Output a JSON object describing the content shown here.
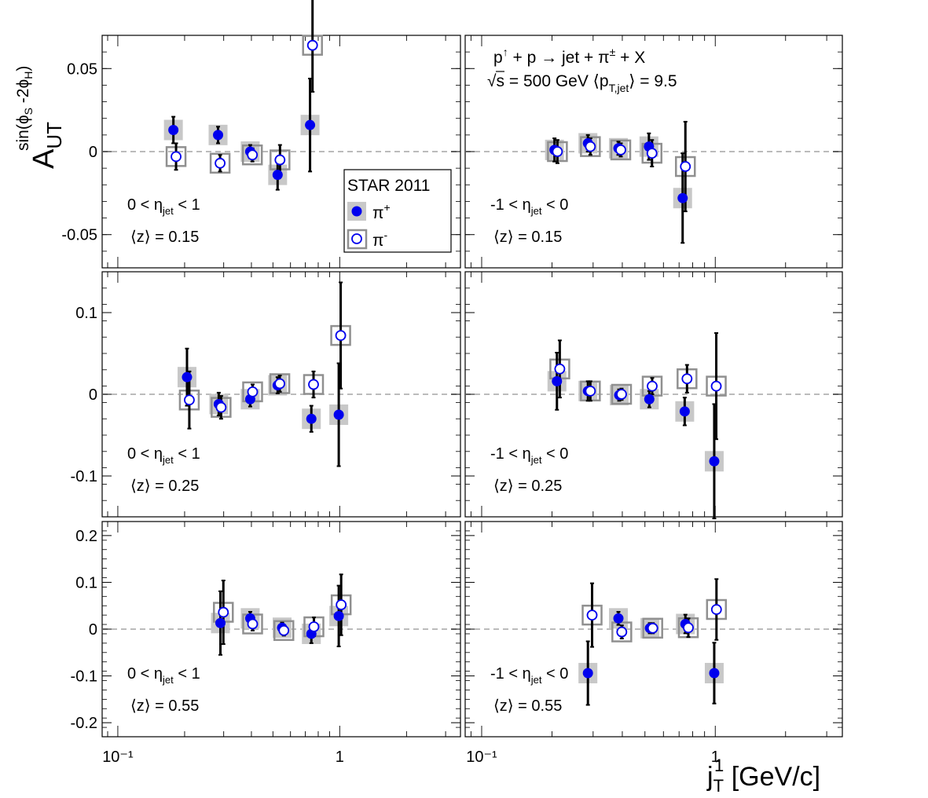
{
  "figure": {
    "ylabel_main": "A",
    "ylabel_sub": "UT",
    "ylabel_sup": "sin(ϕ",
    "ylabel_sup_sub1": "S",
    "ylabel_sup_mid": " -2ϕ",
    "ylabel_sup_sub2": "H",
    "ylabel_sup_end": ")",
    "xlabel_main": "j",
    "xlabel_sub": "T",
    "xlabel_sup": "1",
    "xlabel_unit": " [GeV/c]",
    "reaction_line1_a": "p",
    "reaction_line1_b": " + p → jet + π",
    "reaction_line1_sup": "±",
    "reaction_line1_c": " + X",
    "reaction_line2_a": "√s = 500 GeV   ⟨p",
    "reaction_line2_sub": "T,jet",
    "reaction_line2_b": "⟩ = 9.5",
    "legend_title": "STAR 2011",
    "legend_piplus": "π",
    "legend_piplus_sup": "+",
    "legend_piminus": "π",
    "legend_piminus_sup": "-",
    "colors": {
      "pi_plus": "#0000ee",
      "pi_minus_edge": "#0000ee",
      "sys_plus": "#c8c8c8",
      "sys_minus": "#909090",
      "zero_line": "#bbbbbb"
    }
  },
  "chart_data": [
    {
      "type": "scatter",
      "row": 0,
      "col": 0,
      "xscale": "log",
      "xlim": [
        0.085,
        3.5
      ],
      "ylim": [
        -0.07,
        0.07
      ],
      "yticks": [
        -0.05,
        0,
        0.05
      ],
      "ytick_labels": [
        "-0.05",
        "0",
        "0.05"
      ],
      "xtick_labels_shown": false,
      "label_eta_a": "0 < η",
      "label_eta_sub": "jet",
      "label_eta_b": " < 1",
      "label_z": "⟨z⟩ = 0.15",
      "series": [
        {
          "name": "π+",
          "points": [
            {
              "x": 0.178,
              "y": 0.013,
              "err": 0.008
            },
            {
              "x": 0.283,
              "y": 0.01,
              "err": 0.005
            },
            {
              "x": 0.395,
              "y": 0.0,
              "err": 0.004
            },
            {
              "x": 0.525,
              "y": -0.014,
              "err": 0.009
            },
            {
              "x": 0.735,
              "y": 0.016,
              "err": 0.028
            }
          ]
        },
        {
          "name": "π-",
          "points": [
            {
              "x": 0.183,
              "y": -0.003,
              "err": 0.008
            },
            {
              "x": 0.289,
              "y": -0.007,
              "err": 0.005
            },
            {
              "x": 0.404,
              "y": -0.002,
              "err": 0.004
            },
            {
              "x": 0.538,
              "y": -0.005,
              "err": 0.009
            },
            {
              "x": 0.754,
              "y": 0.064,
              "err": 0.028
            }
          ]
        }
      ]
    },
    {
      "type": "scatter",
      "row": 0,
      "col": 1,
      "xscale": "log",
      "xlim": [
        0.085,
        3.5
      ],
      "ylim": [
        -0.07,
        0.07
      ],
      "yticks": [
        -0.05,
        0,
        0.05
      ],
      "ytick_labels": [
        "",
        "",
        ""
      ],
      "xtick_labels_shown": false,
      "label_eta_a": "-1 < η",
      "label_eta_sub": "jet",
      "label_eta_b": " < 0",
      "label_z": "⟨z⟩ = 0.15",
      "series": [
        {
          "name": "π+",
          "points": [
            {
              "x": 0.205,
              "y": 0.001,
              "err": 0.007
            },
            {
              "x": 0.285,
              "y": 0.005,
              "err": 0.005
            },
            {
              "x": 0.385,
              "y": 0.002,
              "err": 0.004
            },
            {
              "x": 0.52,
              "y": 0.003,
              "err": 0.008
            },
            {
              "x": 0.725,
              "y": -0.028,
              "err": 0.027
            }
          ]
        },
        {
          "name": "π-",
          "points": [
            {
              "x": 0.211,
              "y": 0.0,
              "err": 0.007
            },
            {
              "x": 0.292,
              "y": 0.003,
              "err": 0.005
            },
            {
              "x": 0.394,
              "y": 0.001,
              "err": 0.004
            },
            {
              "x": 0.536,
              "y": -0.001,
              "err": 0.008
            },
            {
              "x": 0.745,
              "y": -0.009,
              "err": 0.027
            }
          ]
        }
      ]
    },
    {
      "type": "scatter",
      "row": 1,
      "col": 0,
      "xscale": "log",
      "xlim": [
        0.085,
        3.5
      ],
      "ylim": [
        -0.15,
        0.15
      ],
      "yticks": [
        -0.1,
        0,
        0.1
      ],
      "ytick_labels": [
        "-0.1",
        "0",
        "0.1"
      ],
      "xtick_labels_shown": false,
      "label_eta_a": "0 < η",
      "label_eta_sub": "jet",
      "label_eta_b": " < 1",
      "label_z": "⟨z⟩ = 0.25",
      "series": [
        {
          "name": "π+",
          "points": [
            {
              "x": 0.205,
              "y": 0.021,
              "err": 0.035
            },
            {
              "x": 0.285,
              "y": -0.012,
              "err": 0.014
            },
            {
              "x": 0.395,
              "y": -0.006,
              "err": 0.009
            },
            {
              "x": 0.525,
              "y": 0.011,
              "err": 0.01
            },
            {
              "x": 0.745,
              "y": -0.03,
              "err": 0.016
            },
            {
              "x": 0.99,
              "y": -0.025,
              "err": 0.063
            }
          ]
        },
        {
          "name": "π-",
          "points": [
            {
              "x": 0.21,
              "y": -0.007,
              "err": 0.035
            },
            {
              "x": 0.292,
              "y": -0.016,
              "err": 0.014
            },
            {
              "x": 0.405,
              "y": 0.003,
              "err": 0.009
            },
            {
              "x": 0.537,
              "y": 0.013,
              "err": 0.01
            },
            {
              "x": 0.762,
              "y": 0.012,
              "err": 0.016
            },
            {
              "x": 1.01,
              "y": 0.072,
              "err": 0.065
            }
          ]
        }
      ]
    },
    {
      "type": "scatter",
      "row": 1,
      "col": 1,
      "xscale": "log",
      "xlim": [
        0.085,
        3.5
      ],
      "ylim": [
        -0.15,
        0.15
      ],
      "yticks": [
        -0.1,
        0,
        0.1
      ],
      "ytick_labels": [
        "",
        "",
        ""
      ],
      "xtick_labels_shown": false,
      "label_eta_a": "-1 < η",
      "label_eta_sub": "jet",
      "label_eta_b": " < 0",
      "label_z": "⟨z⟩ = 0.25",
      "series": [
        {
          "name": "π+",
          "points": [
            {
              "x": 0.21,
              "y": 0.016,
              "err": 0.035
            },
            {
              "x": 0.285,
              "y": 0.004,
              "err": 0.012
            },
            {
              "x": 0.388,
              "y": -0.001,
              "err": 0.007
            },
            {
              "x": 0.522,
              "y": -0.006,
              "err": 0.01
            },
            {
              "x": 0.74,
              "y": -0.021,
              "err": 0.017
            },
            {
              "x": 0.99,
              "y": -0.082,
              "err": 0.07
            }
          ]
        },
        {
          "name": "π-",
          "points": [
            {
              "x": 0.216,
              "y": 0.031,
              "err": 0.035
            },
            {
              "x": 0.292,
              "y": 0.004,
              "err": 0.012
            },
            {
              "x": 0.397,
              "y": 0.0,
              "err": 0.007
            },
            {
              "x": 0.537,
              "y": 0.01,
              "err": 0.01
            },
            {
              "x": 0.757,
              "y": 0.019,
              "err": 0.017
            },
            {
              "x": 1.01,
              "y": 0.01,
              "err": 0.065
            }
          ]
        }
      ]
    },
    {
      "type": "scatter",
      "row": 2,
      "col": 0,
      "xscale": "log",
      "xlim": [
        0.085,
        3.5
      ],
      "ylim": [
        -0.23,
        0.23
      ],
      "yticks": [
        -0.2,
        -0.1,
        0,
        0.1,
        0.2
      ],
      "ytick_labels": [
        "-0.2",
        "-0.1",
        "0",
        "0.1",
        "0.2"
      ],
      "xtick_labels_shown": true,
      "xtick_labels": [
        "10⁻¹",
        "1"
      ],
      "label_eta_a": "0 < η",
      "label_eta_sub": "jet",
      "label_eta_b": " < 1",
      "label_z": "⟨z⟩ = 0.55",
      "series": [
        {
          "name": "π+",
          "points": [
            {
              "x": 0.29,
              "y": 0.013,
              "err": 0.068
            },
            {
              "x": 0.395,
              "y": 0.023,
              "err": 0.014
            },
            {
              "x": 0.55,
              "y": 0.003,
              "err": 0.011
            },
            {
              "x": 0.745,
              "y": -0.01,
              "err": 0.02
            },
            {
              "x": 0.99,
              "y": 0.028,
              "err": 0.065
            }
          ]
        },
        {
          "name": "π-",
          "points": [
            {
              "x": 0.299,
              "y": 0.036,
              "err": 0.068
            },
            {
              "x": 0.405,
              "y": 0.011,
              "err": 0.014
            },
            {
              "x": 0.56,
              "y": -0.003,
              "err": 0.011
            },
            {
              "x": 0.765,
              "y": 0.005,
              "err": 0.02
            },
            {
              "x": 1.015,
              "y": 0.052,
              "err": 0.065
            }
          ]
        }
      ]
    },
    {
      "type": "scatter",
      "row": 2,
      "col": 1,
      "xscale": "log",
      "xlim": [
        0.085,
        3.5
      ],
      "ylim": [
        -0.23,
        0.23
      ],
      "yticks": [
        -0.2,
        -0.1,
        0,
        0.1,
        0.2
      ],
      "ytick_labels": [
        "",
        "",
        "",
        "",
        ""
      ],
      "xtick_labels_shown": true,
      "xtick_labels": [
        "10⁻¹",
        "1"
      ],
      "label_eta_a": "-1 < η",
      "label_eta_sub": "jet",
      "label_eta_b": " < 0",
      "label_z": "⟨z⟩ = 0.55",
      "series": [
        {
          "name": "π+",
          "points": [
            {
              "x": 0.285,
              "y": -0.094,
              "err": 0.068
            },
            {
              "x": 0.385,
              "y": 0.023,
              "err": 0.014
            },
            {
              "x": 0.525,
              "y": 0.002,
              "err": 0.011
            },
            {
              "x": 0.745,
              "y": 0.011,
              "err": 0.02
            },
            {
              "x": 0.99,
              "y": -0.094,
              "err": 0.065
            }
          ]
        },
        {
          "name": "π-",
          "points": [
            {
              "x": 0.297,
              "y": 0.03,
              "err": 0.068
            },
            {
              "x": 0.398,
              "y": -0.006,
              "err": 0.014
            },
            {
              "x": 0.54,
              "y": 0.002,
              "err": 0.011
            },
            {
              "x": 0.767,
              "y": 0.003,
              "err": 0.02
            },
            {
              "x": 1.012,
              "y": 0.042,
              "err": 0.065
            }
          ]
        }
      ]
    }
  ]
}
